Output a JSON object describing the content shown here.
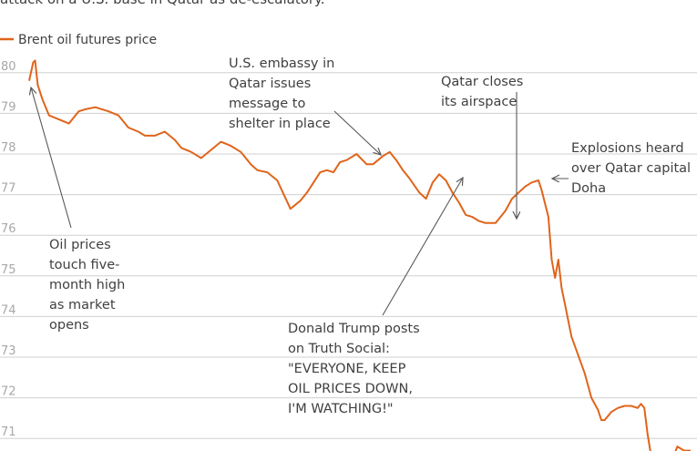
{
  "header_fragment": "attack on a U.S. base in Qatar as de-escalatory.",
  "colors": {
    "series": "#e0641b",
    "grid": "#d0d0d0",
    "tick": "#a8a8a8",
    "text": "#404040",
    "arrow": "#595959"
  },
  "chart_data": {
    "type": "line",
    "title": "",
    "xlabel": "",
    "ylabel": "",
    "ylim": [
      70.6,
      80.6
    ],
    "yticks": [
      71,
      72,
      73,
      74,
      75,
      76,
      77,
      78,
      79,
      80
    ],
    "legend": {
      "position": "top-left"
    },
    "grid": true,
    "series": [
      {
        "name": "Brent oil futures price",
        "x": [
          0,
          0.006,
          0.009,
          0.013,
          0.02,
          0.03,
          0.045,
          0.06,
          0.075,
          0.085,
          0.1,
          0.12,
          0.135,
          0.15,
          0.165,
          0.175,
          0.19,
          0.205,
          0.22,
          0.23,
          0.245,
          0.26,
          0.275,
          0.29,
          0.305,
          0.32,
          0.335,
          0.345,
          0.36,
          0.375,
          0.385,
          0.395,
          0.41,
          0.42,
          0.43,
          0.44,
          0.45,
          0.46,
          0.47,
          0.48,
          0.495,
          0.51,
          0.52,
          0.535,
          0.545,
          0.555,
          0.565,
          0.575,
          0.59,
          0.6,
          0.61,
          0.62,
          0.63,
          0.64,
          0.65,
          0.66,
          0.67,
          0.68,
          0.69,
          0.7,
          0.705,
          0.71,
          0.72,
          0.73,
          0.74,
          0.75,
          0.76,
          0.77,
          0.775,
          0.785,
          0.79,
          0.795,
          0.8,
          0.805,
          0.81,
          0.815,
          0.82,
          0.83,
          0.84,
          0.85,
          0.86,
          0.865,
          0.87,
          0.88,
          0.89,
          0.9,
          0.91,
          0.92,
          0.925,
          0.93,
          0.935,
          0.94,
          0.95,
          0.96,
          0.97,
          0.975,
          0.98,
          0.99,
          1.0
        ],
        "values": [
          79.8,
          80.25,
          80.3,
          79.7,
          79.35,
          78.95,
          78.85,
          78.75,
          79.05,
          79.1,
          79.15,
          79.05,
          78.95,
          78.65,
          78.55,
          78.45,
          78.45,
          78.55,
          78.35,
          78.15,
          78.05,
          77.9,
          78.1,
          78.3,
          78.2,
          78.05,
          77.75,
          77.6,
          77.55,
          77.35,
          77.0,
          76.65,
          76.85,
          77.05,
          77.3,
          77.55,
          77.6,
          77.55,
          77.8,
          77.85,
          78.0,
          77.75,
          77.75,
          77.95,
          78.05,
          77.85,
          77.6,
          77.4,
          77.05,
          76.9,
          77.3,
          77.5,
          77.35,
          77.05,
          76.8,
          76.5,
          76.45,
          76.35,
          76.3,
          76.3,
          76.3,
          76.4,
          76.6,
          76.9,
          77.05,
          77.2,
          77.3,
          77.35,
          77.1,
          76.45,
          75.4,
          74.95,
          75.4,
          74.7,
          74.3,
          73.9,
          73.5,
          73.05,
          72.6,
          72.0,
          71.7,
          71.45,
          71.45,
          71.65,
          71.75,
          71.8,
          71.8,
          71.75,
          71.85,
          71.75,
          71.1,
          70.6,
          70.5,
          70.4,
          70.5,
          70.6,
          70.8,
          70.7,
          70.7
        ]
      }
    ],
    "annotations": [
      {
        "id": "ann-open",
        "lines": [
          "Oil prices",
          "touch five-",
          "month high",
          "as market",
          "opens"
        ]
      },
      {
        "id": "ann-embassy",
        "lines": [
          "U.S. embassy in",
          "Qatar issues",
          "message to",
          "shelter in place"
        ]
      },
      {
        "id": "ann-airspace",
        "lines": [
          "Qatar closes",
          "its airspace"
        ]
      },
      {
        "id": "ann-explosions",
        "lines": [
          "Explosions heard",
          "over Qatar capital",
          "Doha"
        ]
      },
      {
        "id": "ann-trump",
        "lines": [
          "Donald Trump posts",
          "on Truth Social:",
          "\"EVERYONE, KEEP",
          "OIL PRICES DOWN,",
          "I'M WATCHING!\""
        ]
      }
    ]
  }
}
